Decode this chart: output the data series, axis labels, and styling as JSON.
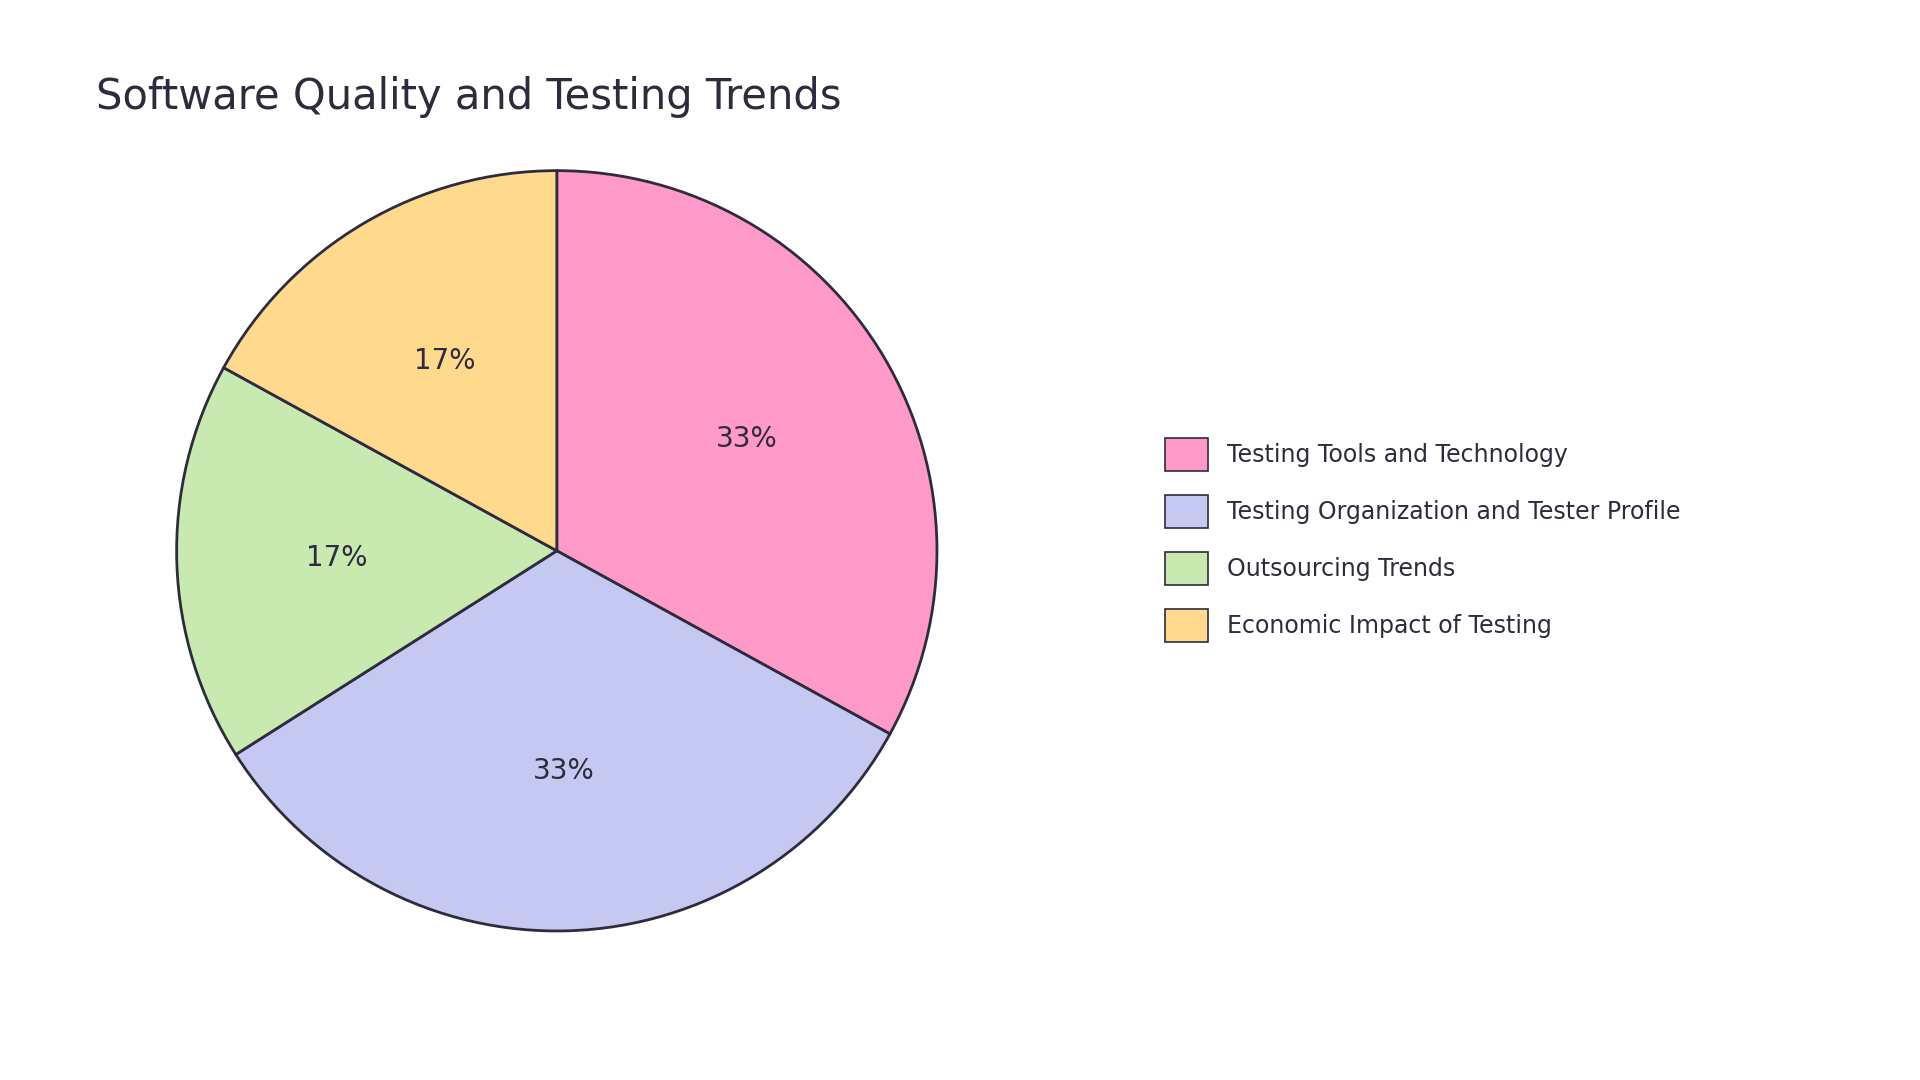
{
  "title": "Software Quality and Testing Trends",
  "labels": [
    "Testing Tools and Technology",
    "Testing Organization and Tester Profile",
    "Outsourcing Trends",
    "Economic Impact of Testing"
  ],
  "values": [
    33,
    33,
    17,
    17
  ],
  "colors": [
    "#FF99C8",
    "#C5C8F0",
    "#C8EAB0",
    "#FFD98E"
  ],
  "edge_color": "#2E2B3E",
  "edge_width": 2.0,
  "pct_labels": [
    "33%",
    "33%",
    "17%",
    "17%"
  ],
  "background_color": "#FFFFFF",
  "title_fontsize": 30,
  "pct_fontsize": 20,
  "legend_fontsize": 17,
  "startangle": 90,
  "counterclock": false
}
